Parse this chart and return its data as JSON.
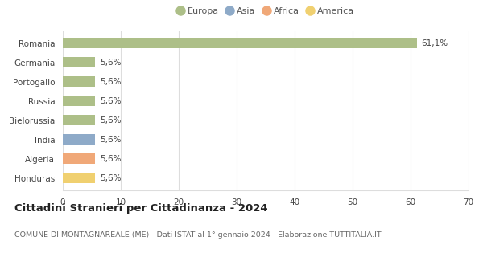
{
  "categories": [
    "Honduras",
    "Algeria",
    "India",
    "Bielorussia",
    "Russia",
    "Portogallo",
    "Germania",
    "Romania"
  ],
  "values": [
    5.6,
    5.6,
    5.6,
    5.6,
    5.6,
    5.6,
    5.6,
    61.1
  ],
  "colors": [
    "#f0d070",
    "#f0a878",
    "#8eaac8",
    "#adbf88",
    "#adbf88",
    "#adbf88",
    "#adbf88",
    "#adbf88"
  ],
  "labels": [
    "5,6%",
    "5,6%",
    "5,6%",
    "5,6%",
    "5,6%",
    "5,6%",
    "5,6%",
    "61,1%"
  ],
  "xlim": [
    0,
    70
  ],
  "xticks": [
    0,
    10,
    20,
    30,
    40,
    50,
    60,
    70
  ],
  "legend_entries": [
    {
      "label": "Europa",
      "color": "#adbf88"
    },
    {
      "label": "Asia",
      "color": "#8eaac8"
    },
    {
      "label": "Africa",
      "color": "#f0a878"
    },
    {
      "label": "America",
      "color": "#f0d070"
    }
  ],
  "title": "Cittadini Stranieri per Cittadinanza - 2024",
  "subtitle": "COMUNE DI MONTAGNAREALE (ME) - Dati ISTAT al 1° gennaio 2024 - Elaborazione TUTTITALIA.IT",
  "background_color": "#ffffff",
  "grid_color": "#dddddd",
  "bar_height": 0.52,
  "label_fontsize": 7.5,
  "tick_fontsize": 7.5,
  "title_fontsize": 9.5,
  "subtitle_fontsize": 6.8,
  "legend_fontsize": 8.0
}
